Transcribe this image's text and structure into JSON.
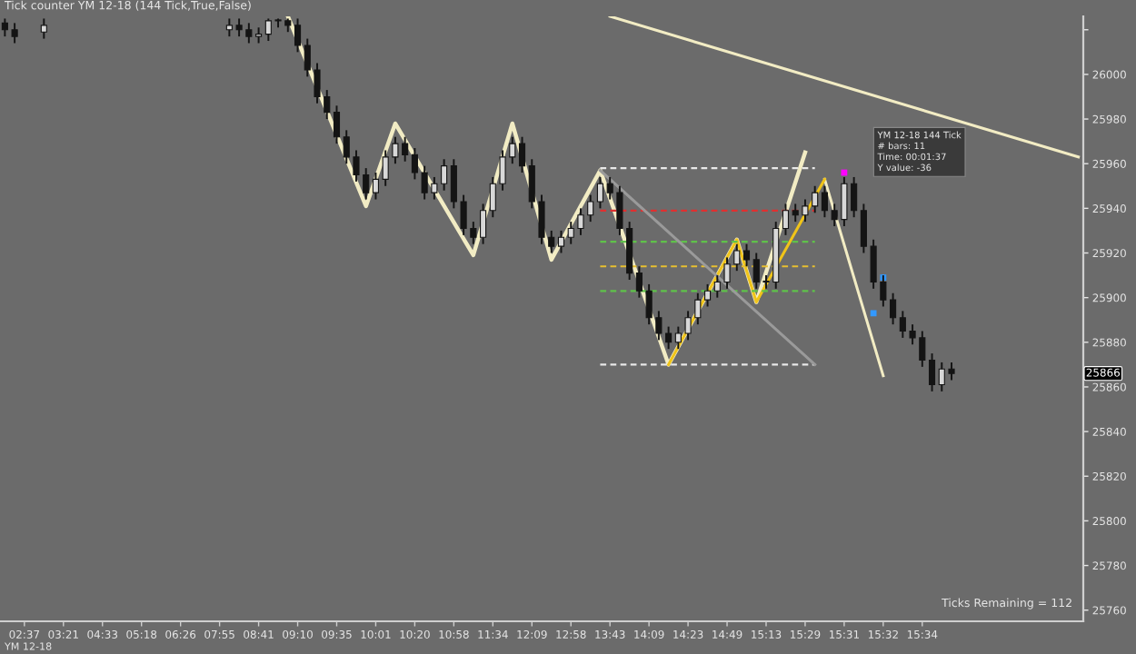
{
  "chart_data": {
    "type": "candlestick",
    "title": "Tick counter YM 12-18 (144 Tick,True,False)",
    "color": "#141414",
    "categories": [
      null,
      null,
      "02:37",
      null,
      null,
      null,
      "03:21",
      null,
      null,
      null,
      "04:33",
      null,
      null,
      null,
      "05:18",
      null,
      null,
      null,
      "06:26",
      null,
      null,
      null,
      "07:55",
      null,
      null,
      null,
      "08:41",
      null,
      null,
      null,
      "09:10",
      null,
      null,
      null,
      "09:35",
      null,
      null,
      null,
      "10:01",
      null,
      null,
      null,
      "10:20",
      null,
      null,
      null,
      "10:58",
      null,
      null,
      null,
      "11:34",
      null,
      null,
      null,
      "12:09",
      null,
      null,
      null,
      "12:58",
      null,
      null,
      null,
      "13:43",
      null,
      null,
      null,
      "14:09",
      null,
      null,
      null,
      "14:23",
      null,
      null,
      null,
      "14:49",
      null,
      null,
      null,
      "15:13",
      null,
      null,
      null,
      "15:29",
      null,
      null,
      null,
      "15:31",
      null,
      null,
      null,
      "15:32",
      null,
      null,
      null,
      "15:34",
      null,
      null,
      null,
      null,
      null,
      null,
      null,
      null,
      null,
      null,
      null,
      null,
      null,
      null,
      null,
      null
    ],
    "ohlc": [
      [
        26023,
        26025,
        26017,
        26020
      ],
      [
        26020,
        26023,
        26014,
        26017
      ],
      null,
      null,
      [
        26019,
        26025,
        26016,
        26022
      ],
      null,
      null,
      null,
      null,
      null,
      null,
      null,
      null,
      null,
      null,
      null,
      null,
      null,
      null,
      null,
      null,
      null,
      null,
      [
        26020,
        26025,
        26017,
        26022
      ],
      [
        26022,
        26025,
        26017,
        26020
      ],
      [
        26020,
        26023,
        26014,
        26017
      ],
      [
        26017,
        26021,
        26014,
        26018
      ],
      [
        26018,
        26025,
        26015,
        26024
      ],
      [
        26024,
        26025,
        26021,
        26024
      ],
      [
        26024,
        26025,
        26019,
        26022
      ],
      [
        26022,
        26025,
        26010,
        26013
      ],
      [
        26013,
        26016,
        25999,
        26002
      ],
      [
        26002,
        26005,
        25987,
        25990
      ],
      [
        25990,
        25993,
        25980,
        25983
      ],
      [
        25983,
        25986,
        25969,
        25972
      ],
      [
        25972,
        25975,
        25960,
        25963
      ],
      [
        25963,
        25966,
        25952,
        25955
      ],
      [
        25955,
        25958,
        25944,
        25947
      ],
      [
        25947,
        25956,
        25944,
        25953
      ],
      [
        25953,
        25966,
        25950,
        25963
      ],
      [
        25963,
        25972,
        25960,
        25969
      ],
      [
        25969,
        25972,
        25961,
        25964
      ],
      [
        25964,
        25967,
        25953,
        25956
      ],
      [
        25956,
        25959,
        25944,
        25947
      ],
      [
        25947,
        25954,
        25944,
        25951
      ],
      [
        25951,
        25962,
        25948,
        25959
      ],
      [
        25959,
        25962,
        25940,
        25943
      ],
      [
        25943,
        25946,
        25928,
        25931
      ],
      [
        25931,
        25934,
        25924,
        25927
      ],
      [
        25927,
        25942,
        25924,
        25939
      ],
      [
        25939,
        25954,
        25936,
        25951
      ],
      [
        25951,
        25966,
        25948,
        25963
      ],
      [
        25963,
        25972,
        25960,
        25969
      ],
      [
        25969,
        25972,
        25956,
        25959
      ],
      [
        25959,
        25962,
        25940,
        25943
      ],
      [
        25943,
        25946,
        25924,
        25927
      ],
      [
        25927,
        25930,
        25920,
        25923
      ],
      [
        25923,
        25930,
        25920,
        25927
      ],
      [
        25927,
        25934,
        25924,
        25931
      ],
      [
        25931,
        25940,
        25928,
        25937
      ],
      [
        25937,
        25946,
        25934,
        25943
      ],
      [
        25943,
        25954,
        25940,
        25951
      ],
      [
        25951,
        25954,
        25944,
        25947
      ],
      [
        25947,
        25950,
        25928,
        25931
      ],
      [
        25931,
        25934,
        25908,
        25911
      ],
      [
        25911,
        25914,
        25900,
        25903
      ],
      [
        25903,
        25906,
        25888,
        25891
      ],
      [
        25891,
        25894,
        25881,
        25884
      ],
      [
        25884,
        25887,
        25877,
        25880
      ],
      [
        25880,
        25887,
        25877,
        25884
      ],
      [
        25884,
        25894,
        25881,
        25891
      ],
      [
        25891,
        25902,
        25888,
        25899
      ],
      [
        25899,
        25906,
        25896,
        25903
      ],
      [
        25903,
        25910,
        25900,
        25907
      ],
      [
        25907,
        25918,
        25904,
        25915
      ],
      [
        25915,
        25924,
        25912,
        25921
      ],
      [
        25921,
        25924,
        25914,
        25917
      ],
      [
        25917,
        25920,
        25904,
        25907
      ],
      [
        25907,
        25910,
        25904,
        25907
      ],
      [
        25907,
        25934,
        25904,
        25931
      ],
      [
        25931,
        25942,
        25928,
        25939
      ],
      [
        25939,
        25942,
        25934,
        25937
      ],
      [
        25937,
        25944,
        25934,
        25941
      ],
      [
        25941,
        25950,
        25938,
        25947
      ],
      [
        25947,
        25950,
        25936,
        25939
      ],
      [
        25939,
        25942,
        25932,
        25935
      ],
      [
        25935,
        25954,
        25932,
        25951
      ],
      [
        25951,
        25954,
        25936,
        25939
      ],
      [
        25939,
        25942,
        25920,
        25923
      ],
      [
        25923,
        25926,
        25904,
        25907
      ],
      [
        25907,
        25910,
        25896,
        25899
      ],
      [
        25899,
        25902,
        25888,
        25891
      ],
      [
        25891,
        25894,
        25882,
        25885
      ],
      [
        25885,
        25888,
        25879,
        25882
      ],
      [
        25882,
        25885,
        25869,
        25872
      ],
      [
        25872,
        25875,
        25858,
        25861
      ],
      [
        25861,
        25871,
        25858,
        25868
      ],
      [
        25868,
        25871,
        25863,
        25866
      ],
      null,
      null,
      null,
      null,
      null,
      null,
      null,
      null,
      null,
      null,
      null,
      null,
      null
    ],
    "series": [
      {
        "type": "line",
        "color": "#f2ecc4",
        "values": [
          null,
          null,
          null,
          null,
          null,
          null,
          null,
          null,
          null,
          null,
          null,
          null,
          null,
          null,
          null,
          null,
          null,
          null,
          null,
          null,
          null,
          null,
          null,
          null,
          null,
          null,
          null,
          null,
          null,
          26026,
          null,
          null,
          null,
          null,
          null,
          null,
          null,
          25941,
          null,
          null,
          25978,
          null,
          null,
          null,
          null,
          null,
          null,
          null,
          25919,
          null,
          null,
          null,
          25978,
          null,
          null,
          null,
          25917,
          null,
          null,
          null,
          null,
          25957,
          null,
          null,
          null,
          null,
          null,
          null,
          25870,
          null,
          null,
          null,
          null,
          null,
          null,
          25926,
          null,
          25898,
          null,
          null,
          null,
          null,
          25965,
          null,
          null,
          null,
          null,
          null,
          null,
          null,
          null,
          null,
          null,
          null,
          null,
          null,
          null,
          null,
          null,
          null,
          null,
          null,
          null,
          null,
          null,
          null,
          null,
          null,
          null,
          null,
          null
        ]
      },
      {
        "type": "line",
        "color": "#f2ecc4",
        "values": [
          null,
          null,
          null,
          null,
          null,
          null,
          null,
          null,
          null,
          null,
          null,
          null,
          null,
          null,
          null,
          null,
          null,
          null,
          null,
          null,
          null,
          null,
          null,
          null,
          null,
          null,
          null,
          null,
          null,
          null,
          null,
          null,
          null,
          null,
          null,
          null,
          null,
          null,
          null,
          null,
          null,
          null,
          null,
          null,
          null,
          null,
          null,
          null,
          null,
          null,
          null,
          null,
          null,
          null,
          null,
          null,
          null,
          null,
          null,
          null,
          null,
          null,
          null,
          null,
          null,
          null,
          null,
          null,
          null,
          null,
          null,
          null,
          null,
          null,
          null,
          null,
          null,
          null,
          null,
          null,
          null,
          null,
          null,
          null,
          25953,
          null,
          null,
          null,
          null,
          null,
          25865,
          null,
          null,
          null,
          null,
          null,
          null,
          null,
          null,
          null,
          null,
          null,
          null,
          null,
          null,
          null,
          null,
          null,
          null,
          null,
          null
        ]
      },
      {
        "type": "line",
        "color": "#f0c419",
        "values": [
          null,
          null,
          null,
          null,
          null,
          null,
          null,
          null,
          null,
          null,
          null,
          null,
          null,
          null,
          null,
          null,
          null,
          null,
          null,
          null,
          null,
          null,
          null,
          null,
          null,
          null,
          null,
          null,
          null,
          null,
          null,
          null,
          null,
          null,
          null,
          null,
          null,
          null,
          null,
          null,
          null,
          null,
          null,
          null,
          null,
          null,
          null,
          null,
          null,
          null,
          null,
          null,
          null,
          null,
          null,
          null,
          null,
          null,
          null,
          null,
          null,
          null,
          null,
          null,
          null,
          null,
          null,
          null,
          25870,
          null,
          null,
          null,
          null,
          null,
          null,
          25926,
          null,
          25898,
          null,
          null,
          null,
          null,
          null,
          null,
          25953,
          null,
          null,
          null,
          null,
          null,
          null,
          null,
          null,
          null,
          null,
          null,
          null,
          null,
          null,
          null,
          null,
          null,
          null,
          null,
          null,
          null,
          null,
          null,
          null,
          null,
          null
        ]
      },
      {
        "type": "line",
        "color": "#f2ecc4",
        "values": [
          null,
          null,
          null,
          null,
          null,
          null,
          null,
          null,
          null,
          null,
          null,
          null,
          null,
          null,
          null,
          null,
          null,
          null,
          null,
          null,
          null,
          null,
          null,
          null,
          null,
          null,
          null,
          null,
          null,
          null,
          null,
          null,
          null,
          null,
          null,
          null,
          null,
          null,
          null,
          null,
          null,
          null,
          null,
          null,
          null,
          null,
          null,
          null,
          null,
          null,
          null,
          null,
          null,
          null,
          null,
          null,
          null,
          null,
          null,
          null,
          null,
          null,
          26026,
          null,
          null,
          null,
          null,
          null,
          null,
          null,
          null,
          null,
          null,
          null,
          null,
          null,
          null,
          null,
          null,
          null,
          null,
          null,
          null,
          null,
          null,
          null,
          null,
          null,
          null,
          null,
          null,
          null,
          null,
          null,
          null,
          null,
          null,
          null,
          null,
          null,
          null,
          null,
          null,
          null,
          null,
          null,
          null,
          null,
          null,
          null,
          25963
        ]
      },
      {
        "type": "line",
        "color": "#e8e8e8",
        "line_style": "dashed",
        "values": [
          null,
          null,
          null,
          null,
          null,
          null,
          null,
          null,
          null,
          null,
          null,
          null,
          null,
          null,
          null,
          null,
          null,
          null,
          null,
          null,
          null,
          null,
          null,
          null,
          null,
          null,
          null,
          null,
          null,
          null,
          null,
          null,
          null,
          null,
          null,
          null,
          null,
          null,
          null,
          null,
          null,
          null,
          null,
          null,
          null,
          null,
          null,
          null,
          null,
          null,
          null,
          null,
          null,
          null,
          null,
          null,
          null,
          null,
          null,
          null,
          null,
          25958,
          null,
          null,
          null,
          null,
          null,
          null,
          null,
          null,
          null,
          null,
          null,
          null,
          null,
          null,
          null,
          null,
          null,
          null,
          null,
          null,
          null,
          25958,
          null,
          null,
          null,
          null,
          null,
          null,
          null,
          null,
          null,
          null,
          null,
          null,
          null,
          null,
          null,
          null,
          null,
          null,
          null,
          null,
          null,
          null,
          null,
          null,
          null,
          null,
          null
        ]
      },
      {
        "type": "line",
        "color": "#e03030",
        "line_style": "dashed",
        "values": [
          null,
          null,
          null,
          null,
          null,
          null,
          null,
          null,
          null,
          null,
          null,
          null,
          null,
          null,
          null,
          null,
          null,
          null,
          null,
          null,
          null,
          null,
          null,
          null,
          null,
          null,
          null,
          null,
          null,
          null,
          null,
          null,
          null,
          null,
          null,
          null,
          null,
          null,
          null,
          null,
          null,
          null,
          null,
          null,
          null,
          null,
          null,
          null,
          null,
          null,
          null,
          null,
          null,
          null,
          null,
          null,
          null,
          null,
          null,
          null,
          null,
          25939,
          null,
          null,
          null,
          null,
          null,
          null,
          null,
          null,
          null,
          null,
          null,
          null,
          null,
          null,
          null,
          null,
          null,
          null,
          null,
          null,
          null,
          25939,
          null,
          null,
          null,
          null,
          null,
          null,
          null,
          null,
          null,
          null,
          null,
          null,
          null,
          null,
          null,
          null,
          null,
          null,
          null,
          null,
          null,
          null,
          null,
          null,
          null,
          null,
          null
        ]
      },
      {
        "type": "line",
        "color": "#5fc24a",
        "line_style": "dashed",
        "values": [
          null,
          null,
          null,
          null,
          null,
          null,
          null,
          null,
          null,
          null,
          null,
          null,
          null,
          null,
          null,
          null,
          null,
          null,
          null,
          null,
          null,
          null,
          null,
          null,
          null,
          null,
          null,
          null,
          null,
          null,
          null,
          null,
          null,
          null,
          null,
          null,
          null,
          null,
          null,
          null,
          null,
          null,
          null,
          null,
          null,
          null,
          null,
          null,
          null,
          null,
          null,
          null,
          null,
          null,
          null,
          null,
          null,
          null,
          null,
          null,
          null,
          25925,
          null,
          null,
          null,
          null,
          null,
          null,
          null,
          null,
          null,
          null,
          null,
          null,
          null,
          null,
          null,
          null,
          null,
          null,
          null,
          null,
          null,
          25925,
          null,
          null,
          null,
          null,
          null,
          null,
          null,
          null,
          null,
          null,
          null,
          null,
          null,
          null,
          null,
          null,
          null,
          null,
          null,
          null,
          null,
          null,
          null,
          null,
          null,
          null,
          null
        ]
      },
      {
        "type": "line",
        "color": "#e8c030",
        "line_style": "dashed",
        "values": [
          null,
          null,
          null,
          null,
          null,
          null,
          null,
          null,
          null,
          null,
          null,
          null,
          null,
          null,
          null,
          null,
          null,
          null,
          null,
          null,
          null,
          null,
          null,
          null,
          null,
          null,
          null,
          null,
          null,
          null,
          null,
          null,
          null,
          null,
          null,
          null,
          null,
          null,
          null,
          null,
          null,
          null,
          null,
          null,
          null,
          null,
          null,
          null,
          null,
          null,
          null,
          null,
          null,
          null,
          null,
          null,
          null,
          null,
          null,
          null,
          null,
          25914,
          null,
          null,
          null,
          null,
          null,
          null,
          null,
          null,
          null,
          null,
          null,
          null,
          null,
          null,
          null,
          null,
          null,
          null,
          null,
          null,
          null,
          25914,
          null,
          null,
          null,
          null,
          null,
          null,
          null,
          null,
          null,
          null,
          null,
          null,
          null,
          null,
          null,
          null,
          null,
          null,
          null,
          null,
          null,
          null,
          null,
          null,
          null,
          null,
          null
        ]
      },
      {
        "type": "line",
        "color": "#5fc24a",
        "line_style": "dashed",
        "values": [
          null,
          null,
          null,
          null,
          null,
          null,
          null,
          null,
          null,
          null,
          null,
          null,
          null,
          null,
          null,
          null,
          null,
          null,
          null,
          null,
          null,
          null,
          null,
          null,
          null,
          null,
          null,
          null,
          null,
          null,
          null,
          null,
          null,
          null,
          null,
          null,
          null,
          null,
          null,
          null,
          null,
          null,
          null,
          null,
          null,
          null,
          null,
          null,
          null,
          null,
          null,
          null,
          null,
          null,
          null,
          null,
          null,
          null,
          null,
          null,
          null,
          25903,
          null,
          null,
          null,
          null,
          null,
          null,
          null,
          null,
          null,
          null,
          null,
          null,
          null,
          null,
          null,
          null,
          null,
          null,
          null,
          null,
          null,
          25903,
          null,
          null,
          null,
          null,
          null,
          null,
          null,
          null,
          null,
          null,
          null,
          null,
          null,
          null,
          null,
          null,
          null,
          null,
          null,
          null,
          null,
          null,
          null,
          null,
          null,
          null,
          null
        ]
      },
      {
        "type": "line",
        "color": "#e8e8e8",
        "line_style": "dashed",
        "values": [
          null,
          null,
          null,
          null,
          null,
          null,
          null,
          null,
          null,
          null,
          null,
          null,
          null,
          null,
          null,
          null,
          null,
          null,
          null,
          null,
          null,
          null,
          null,
          null,
          null,
          null,
          null,
          null,
          null,
          null,
          null,
          null,
          null,
          null,
          null,
          null,
          null,
          null,
          null,
          null,
          null,
          null,
          null,
          null,
          null,
          null,
          null,
          null,
          null,
          null,
          null,
          null,
          null,
          null,
          null,
          null,
          null,
          null,
          null,
          null,
          null,
          25870,
          null,
          null,
          null,
          null,
          null,
          null,
          null,
          null,
          null,
          null,
          null,
          null,
          null,
          null,
          null,
          null,
          null,
          null,
          null,
          null,
          null,
          25870,
          null,
          null,
          null,
          null,
          null,
          null,
          null,
          null,
          null,
          null,
          null,
          null,
          null,
          null,
          null,
          null,
          null,
          null,
          null,
          null,
          null,
          null,
          null,
          null,
          null,
          null,
          null
        ]
      },
      {
        "type": "line",
        "color": "#9a9a9a",
        "values": [
          null,
          null,
          null,
          null,
          null,
          null,
          null,
          null,
          null,
          null,
          null,
          null,
          null,
          null,
          null,
          null,
          null,
          null,
          null,
          null,
          null,
          null,
          null,
          null,
          null,
          null,
          null,
          null,
          null,
          null,
          null,
          null,
          null,
          null,
          null,
          null,
          null,
          null,
          null,
          null,
          null,
          null,
          null,
          null,
          null,
          null,
          null,
          null,
          null,
          null,
          null,
          null,
          null,
          null,
          null,
          null,
          null,
          null,
          null,
          null,
          null,
          25957,
          null,
          null,
          null,
          null,
          null,
          null,
          null,
          null,
          null,
          null,
          null,
          null,
          null,
          null,
          null,
          null,
          null,
          null,
          null,
          null,
          null,
          25870,
          null,
          null,
          null,
          null,
          null,
          null,
          null,
          null,
          null,
          null,
          null,
          null,
          null,
          null,
          null,
          null,
          null,
          null,
          null,
          null,
          null,
          null,
          null,
          null,
          null,
          null,
          null
        ]
      },
      {
        "type": "scatter",
        "color": "#ff00ff",
        "marker": "square",
        "values": [
          null,
          null,
          null,
          null,
          null,
          null,
          null,
          null,
          null,
          null,
          null,
          null,
          null,
          null,
          null,
          null,
          null,
          null,
          null,
          null,
          null,
          null,
          null,
          null,
          null,
          null,
          null,
          null,
          null,
          null,
          null,
          null,
          null,
          null,
          null,
          null,
          null,
          null,
          null,
          null,
          null,
          null,
          null,
          null,
          null,
          null,
          null,
          null,
          null,
          null,
          null,
          null,
          null,
          null,
          null,
          null,
          null,
          null,
          null,
          null,
          null,
          null,
          null,
          null,
          null,
          null,
          null,
          null,
          null,
          null,
          null,
          null,
          null,
          null,
          null,
          null,
          null,
          null,
          null,
          null,
          null,
          null,
          null,
          null,
          null,
          null,
          25956,
          null,
          null,
          null,
          null,
          null,
          null,
          null,
          null,
          null,
          null,
          null,
          null,
          null,
          null,
          null,
          null,
          null,
          null,
          null,
          null,
          null,
          null,
          null,
          null
        ]
      },
      {
        "type": "scatter",
        "color": "#3399ff",
        "marker": "square",
        "values": [
          null,
          null,
          null,
          null,
          null,
          null,
          null,
          null,
          null,
          null,
          null,
          null,
          null,
          null,
          null,
          null,
          null,
          null,
          null,
          null,
          null,
          null,
          null,
          null,
          null,
          null,
          null,
          null,
          null,
          null,
          null,
          null,
          null,
          null,
          null,
          null,
          null,
          null,
          null,
          null,
          null,
          null,
          null,
          null,
          null,
          null,
          null,
          null,
          null,
          null,
          null,
          null,
          null,
          null,
          null,
          null,
          null,
          null,
          null,
          null,
          null,
          null,
          null,
          null,
          null,
          null,
          null,
          null,
          null,
          null,
          null,
          null,
          null,
          null,
          null,
          null,
          null,
          null,
          null,
          null,
          null,
          null,
          null,
          null,
          null,
          null,
          null,
          null,
          null,
          25893,
          25909,
          null,
          null,
          null,
          null,
          null,
          null,
          null,
          null,
          null,
          null,
          null,
          null,
          null,
          null,
          null,
          null,
          null,
          null,
          null,
          null
        ]
      }
    ],
    "ylim": [
      25755,
      26026
    ],
    "yticks": [
      25760,
      25780,
      25800,
      25820,
      25840,
      25860,
      25880,
      25900,
      25920,
      25940,
      25960,
      25980,
      26000,
      {
        "value": 26020,
        "label": null
      }
    ],
    "annotations": [
      "Ticks Remaining = 112",
      "YM 12-18",
      "YM 12-18 144 Tick\n# bars: 11\nTime: 00:01:37\nY value: -36",
      "25866"
    ]
  }
}
